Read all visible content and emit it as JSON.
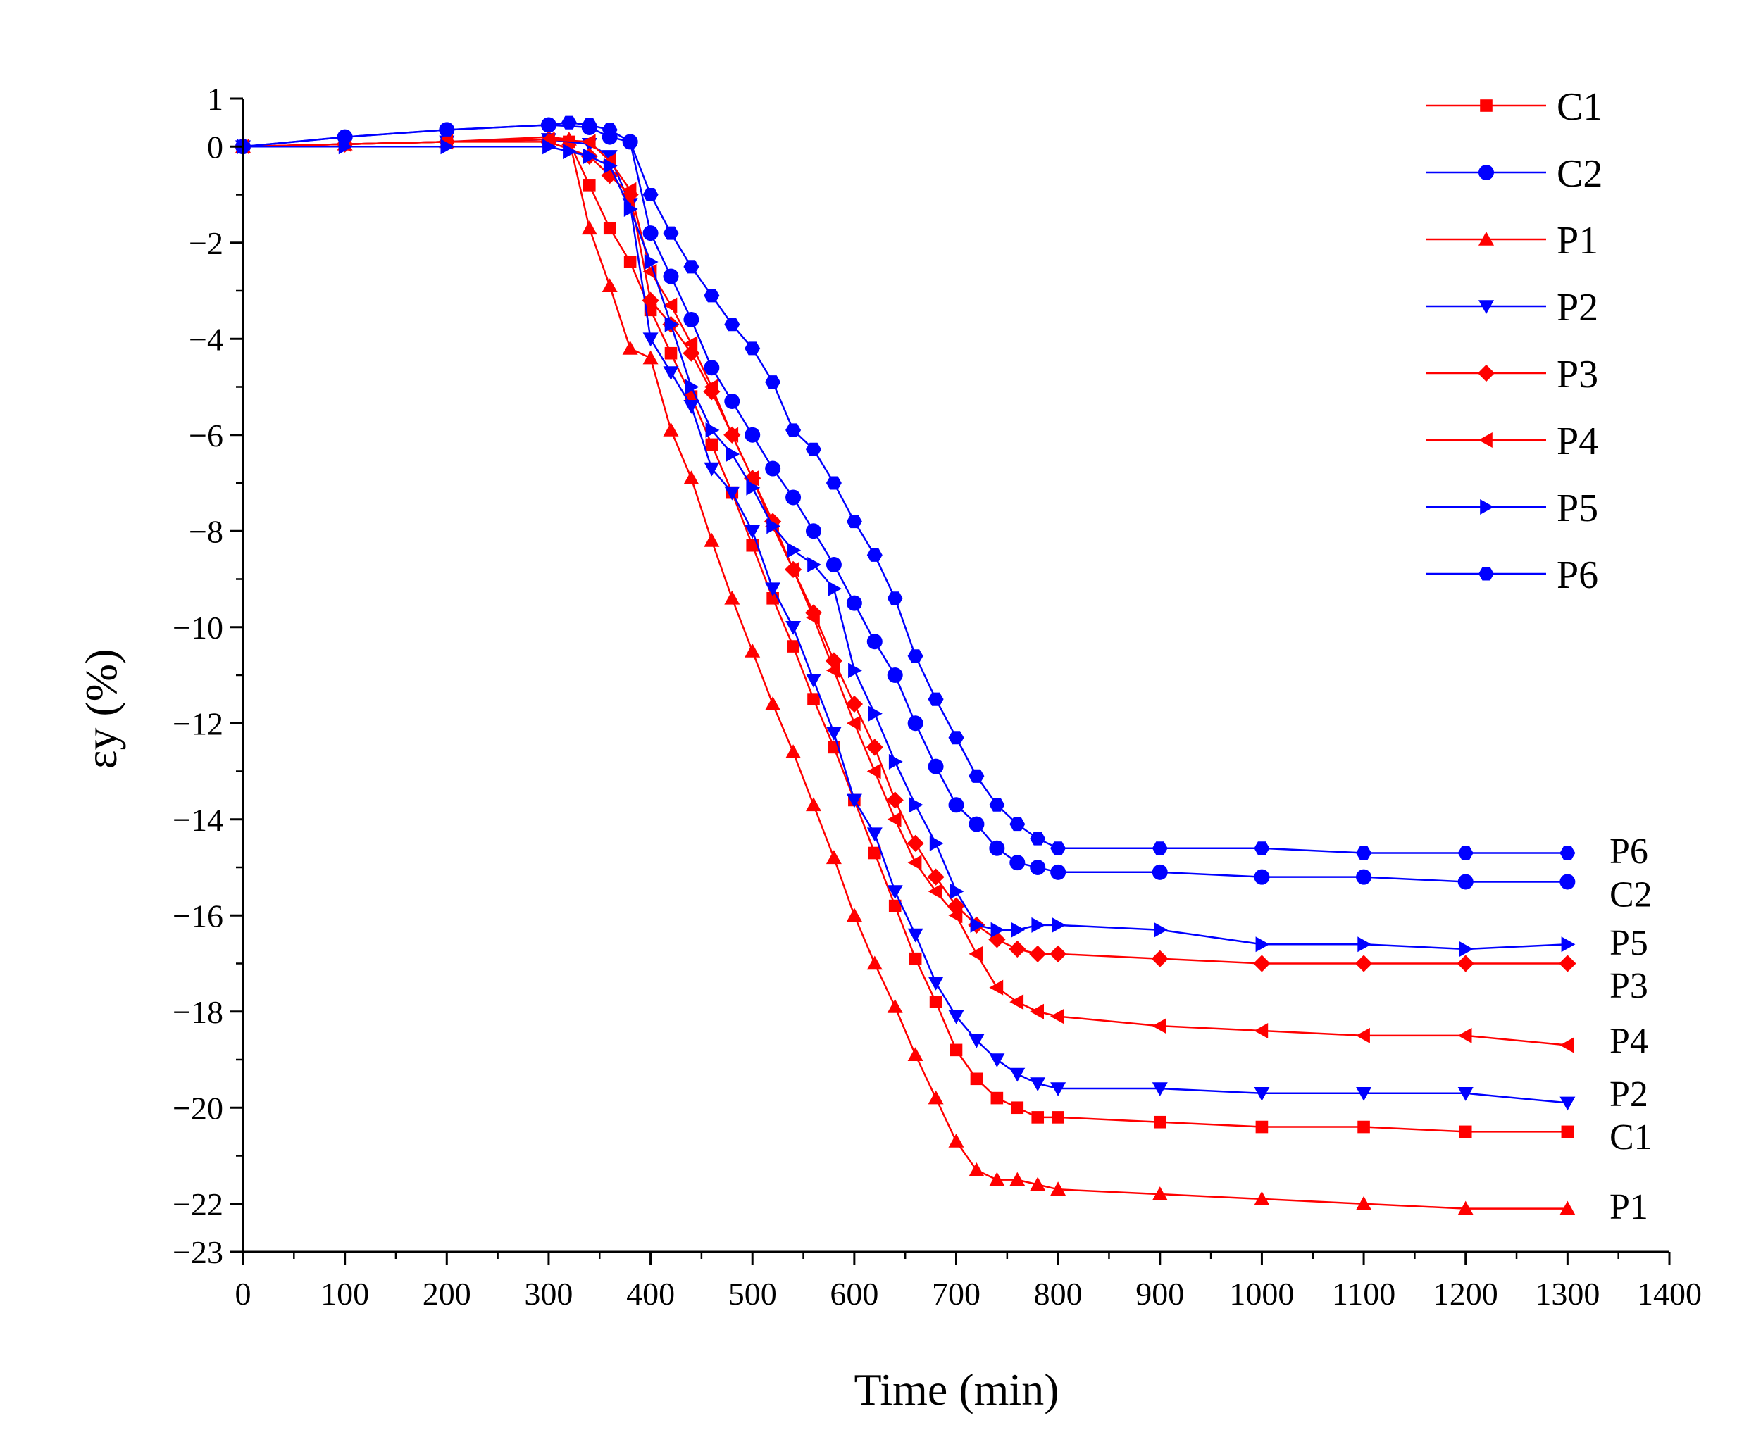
{
  "chart_data": {
    "type": "line",
    "xlabel": "Time (min)",
    "ylabel": "εy (%)",
    "xlim": [
      0,
      1400
    ],
    "ylim": [
      -23,
      1
    ],
    "xticks": [
      0,
      100,
      200,
      300,
      400,
      500,
      600,
      700,
      800,
      900,
      1000,
      1100,
      1200,
      1300,
      1400
    ],
    "yticks": [
      1,
      0,
      -2,
      -4,
      -6,
      -8,
      -10,
      -12,
      -14,
      -16,
      -18,
      -20,
      -22,
      -23
    ],
    "grid": false,
    "legend_position": "top-right",
    "series": [
      {
        "name": "C1",
        "color": "#ff0000",
        "marker": "square",
        "x": [
          0,
          100,
          200,
          300,
          320,
          340,
          360,
          380,
          400,
          420,
          440,
          460,
          480,
          500,
          520,
          540,
          560,
          580,
          600,
          620,
          640,
          660,
          680,
          700,
          720,
          740,
          760,
          780,
          800,
          900,
          1000,
          1100,
          1200,
          1300
        ],
        "y": [
          0,
          0.05,
          0.1,
          0.15,
          0.1,
          -0.8,
          -1.7,
          -2.4,
          -3.4,
          -4.3,
          -5.2,
          -6.2,
          -7.2,
          -8.3,
          -9.4,
          -10.4,
          -11.5,
          -12.5,
          -13.6,
          -14.7,
          -15.8,
          -16.9,
          -17.8,
          -18.8,
          -19.4,
          -19.8,
          -20.0,
          -20.2,
          -20.2,
          -20.3,
          -20.4,
          -20.4,
          -20.5,
          -20.5
        ]
      },
      {
        "name": "C2",
        "color": "#0000ff",
        "marker": "circle",
        "x": [
          0,
          100,
          200,
          300,
          340,
          360,
          380,
          400,
          420,
          440,
          460,
          480,
          500,
          520,
          540,
          560,
          580,
          600,
          620,
          640,
          660,
          680,
          700,
          720,
          740,
          760,
          780,
          800,
          900,
          1000,
          1100,
          1200,
          1300
        ],
        "y": [
          0,
          0.2,
          0.35,
          0.45,
          0.4,
          0.2,
          0.1,
          -1.8,
          -2.7,
          -3.6,
          -4.6,
          -5.3,
          -6.0,
          -6.7,
          -7.3,
          -8.0,
          -8.7,
          -9.5,
          -10.3,
          -11.0,
          -12.0,
          -12.9,
          -13.7,
          -14.1,
          -14.6,
          -14.9,
          -15.0,
          -15.1,
          -15.1,
          -15.2,
          -15.2,
          -15.3,
          -15.3
        ]
      },
      {
        "name": "P1",
        "color": "#ff0000",
        "marker": "triangle-up",
        "x": [
          0,
          100,
          200,
          300,
          320,
          340,
          360,
          380,
          400,
          420,
          440,
          460,
          480,
          500,
          520,
          540,
          560,
          580,
          600,
          620,
          640,
          660,
          680,
          700,
          720,
          740,
          760,
          780,
          800,
          900,
          1000,
          1100,
          1200,
          1300
        ],
        "y": [
          0,
          0.05,
          0.1,
          0.2,
          0.15,
          -1.7,
          -2.9,
          -4.2,
          -4.4,
          -5.9,
          -6.9,
          -8.2,
          -9.4,
          -10.5,
          -11.6,
          -12.6,
          -13.7,
          -14.8,
          -16.0,
          -17.0,
          -17.9,
          -18.9,
          -19.8,
          -20.7,
          -21.3,
          -21.5,
          -21.5,
          -21.6,
          -21.7,
          -21.8,
          -21.9,
          -22.0,
          -22.1,
          -22.1
        ]
      },
      {
        "name": "P2",
        "color": "#0000ff",
        "marker": "triangle-down",
        "x": [
          0,
          100,
          200,
          300,
          340,
          360,
          380,
          400,
          420,
          440,
          460,
          480,
          500,
          520,
          540,
          560,
          580,
          600,
          620,
          640,
          660,
          680,
          700,
          720,
          740,
          760,
          780,
          800,
          900,
          1000,
          1100,
          1200,
          1300
        ],
        "y": [
          0,
          0.05,
          0.1,
          0.15,
          0.05,
          -0.2,
          -1.2,
          -4.0,
          -4.7,
          -5.4,
          -6.7,
          -7.2,
          -8.0,
          -9.2,
          -10.0,
          -11.1,
          -12.2,
          -13.6,
          -14.3,
          -15.5,
          -16.4,
          -17.4,
          -18.1,
          -18.6,
          -19.0,
          -19.3,
          -19.5,
          -19.6,
          -19.6,
          -19.7,
          -19.7,
          -19.7,
          -19.9
        ]
      },
      {
        "name": "P3",
        "color": "#ff0000",
        "marker": "diamond",
        "x": [
          0,
          100,
          200,
          300,
          340,
          360,
          380,
          400,
          420,
          440,
          460,
          480,
          500,
          520,
          540,
          560,
          580,
          600,
          620,
          640,
          660,
          680,
          700,
          720,
          740,
          760,
          780,
          800,
          900,
          1000,
          1100,
          1200,
          1300
        ],
        "y": [
          0,
          0.05,
          0.1,
          0.1,
          -0.2,
          -0.6,
          -1.0,
          -3.2,
          -3.7,
          -4.3,
          -5.1,
          -6.0,
          -6.9,
          -7.8,
          -8.8,
          -9.7,
          -10.7,
          -11.6,
          -12.5,
          -13.6,
          -14.5,
          -15.2,
          -15.8,
          -16.2,
          -16.5,
          -16.7,
          -16.8,
          -16.8,
          -16.9,
          -17.0,
          -17.0,
          -17.0,
          -17.0
        ]
      },
      {
        "name": "P4",
        "color": "#ff0000",
        "marker": "triangle-left",
        "x": [
          0,
          100,
          200,
          300,
          340,
          360,
          380,
          400,
          420,
          440,
          460,
          480,
          500,
          520,
          540,
          560,
          580,
          600,
          620,
          640,
          660,
          680,
          700,
          720,
          740,
          760,
          780,
          800,
          900,
          1000,
          1100,
          1200,
          1300
        ],
        "y": [
          0,
          0.05,
          0.1,
          0.15,
          0.1,
          -0.3,
          -0.9,
          -2.6,
          -3.3,
          -4.1,
          -5.0,
          -6.0,
          -6.9,
          -7.9,
          -8.8,
          -9.8,
          -10.9,
          -12.0,
          -13.0,
          -14.0,
          -14.9,
          -15.5,
          -16.0,
          -16.8,
          -17.5,
          -17.8,
          -18.0,
          -18.1,
          -18.3,
          -18.4,
          -18.5,
          -18.5,
          -18.7
        ]
      },
      {
        "name": "P5",
        "color": "#0000ff",
        "marker": "triangle-right",
        "x": [
          0,
          100,
          200,
          300,
          320,
          340,
          360,
          380,
          400,
          420,
          440,
          460,
          480,
          500,
          520,
          540,
          560,
          580,
          600,
          620,
          640,
          660,
          680,
          700,
          720,
          740,
          760,
          780,
          800,
          900,
          1000,
          1100,
          1200,
          1300
        ],
        "y": [
          0,
          0.0,
          0.0,
          0.0,
          -0.1,
          -0.2,
          -0.4,
          -1.3,
          -2.4,
          -3.7,
          -5.0,
          -5.9,
          -6.4,
          -7.1,
          -7.9,
          -8.4,
          -8.7,
          -9.2,
          -10.9,
          -11.8,
          -12.8,
          -13.7,
          -14.5,
          -15.5,
          -16.2,
          -16.3,
          -16.3,
          -16.2,
          -16.2,
          -16.3,
          -16.6,
          -16.6,
          -16.7,
          -16.6
        ]
      },
      {
        "name": "P6",
        "color": "#0000ff",
        "marker": "hexagon",
        "x": [
          0,
          100,
          200,
          300,
          320,
          340,
          360,
          380,
          400,
          420,
          440,
          460,
          480,
          500,
          520,
          540,
          560,
          580,
          600,
          620,
          640,
          660,
          680,
          700,
          720,
          740,
          760,
          780,
          800,
          900,
          1000,
          1100,
          1200,
          1300
        ],
        "y": [
          0,
          0.2,
          0.35,
          0.45,
          0.5,
          0.45,
          0.35,
          0.1,
          -1.0,
          -1.8,
          -2.5,
          -3.1,
          -3.7,
          -4.2,
          -4.9,
          -5.9,
          -6.3,
          -7.0,
          -7.8,
          -8.5,
          -9.4,
          -10.6,
          -11.5,
          -12.3,
          -13.1,
          -13.7,
          -14.1,
          -14.4,
          -14.6,
          -14.6,
          -14.6,
          -14.7,
          -14.7,
          -14.7
        ]
      }
    ],
    "end_labels": [
      {
        "text": "P6",
        "y": -14.65
      },
      {
        "text": "C2",
        "y": -15.55
      },
      {
        "text": "P5",
        "y": -16.55
      },
      {
        "text": "P3",
        "y": -17.45
      },
      {
        "text": "P4",
        "y": -18.6
      },
      {
        "text": "P2",
        "y": -19.7
      },
      {
        "text": "C1",
        "y": -20.6
      },
      {
        "text": "P1",
        "y": -22.05
      }
    ]
  }
}
